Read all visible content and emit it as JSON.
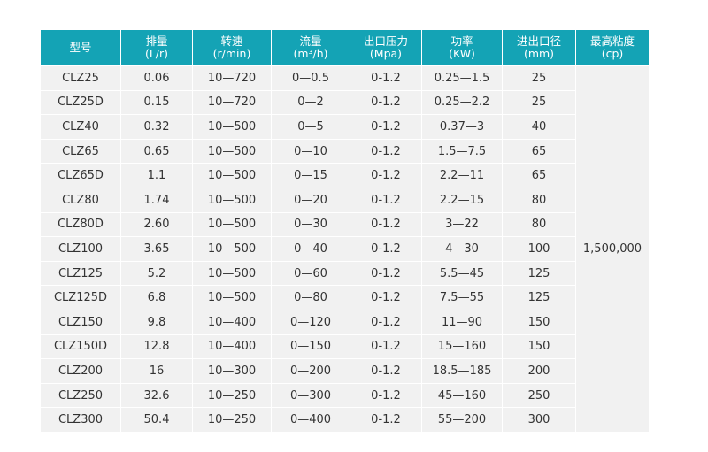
{
  "headers": [
    {
      "label": "型号",
      "unit": ""
    },
    {
      "label": "排量",
      "unit": "(L/r)"
    },
    {
      "label": "转速",
      "unit": "(r/min)"
    },
    {
      "label": "流量",
      "unit": "(m³/h)"
    },
    {
      "label": "出口压力",
      "unit": "(Mpa)"
    },
    {
      "label": "功率",
      "unit": "(KW)"
    },
    {
      "label": "进出口径",
      "unit": "(mm)"
    },
    {
      "label": "最高粘度",
      "unit": "(cp)"
    }
  ],
  "merged_viscosity": "1,500,000",
  "rows": [
    [
      "CLZ25",
      "0.06",
      "10—720",
      "0—0.5",
      "0-1.2",
      "0.25—1.5",
      "25"
    ],
    [
      "CLZ25D",
      "0.15",
      "10—720",
      "0—2",
      "0-1.2",
      "0.25—2.2",
      "25"
    ],
    [
      "CLZ40",
      "0.32",
      "10—500",
      "0—5",
      "0-1.2",
      "0.37—3",
      "40"
    ],
    [
      "CLZ65",
      "0.65",
      "10—500",
      "0—10",
      "0-1.2",
      "1.5—7.5",
      "65"
    ],
    [
      "CLZ65D",
      "1.1",
      "10—500",
      "0—15",
      "0-1.2",
      "2.2—11",
      "65"
    ],
    [
      "CLZ80",
      "1.74",
      "10—500",
      "0—20",
      "0-1.2",
      "2.2—15",
      "80"
    ],
    [
      "CLZ80D",
      "2.60",
      "10—500",
      "0—30",
      "0-1.2",
      "3—22",
      "80"
    ],
    [
      "CLZ100",
      "3.65",
      "10—500",
      "0—40",
      "0-1.2",
      "4—30",
      "100"
    ],
    [
      "CLZ125",
      "5.2",
      "10—500",
      "0—60",
      "0-1.2",
      "5.5—45",
      "125"
    ],
    [
      "CLZ125D",
      "6.8",
      "10—500",
      "0—80",
      "0-1.2",
      "7.5—55",
      "125"
    ],
    [
      "CLZ150",
      "9.8",
      "10—400",
      "0—120",
      "0-1.2",
      "11—90",
      "150"
    ],
    [
      "CLZ150D",
      "12.8",
      "10—400",
      "0—150",
      "0-1.2",
      "15—160",
      "150"
    ],
    [
      "CLZ200",
      "16",
      "10—300",
      "0—200",
      "0-1.2",
      "18.5—185",
      "200"
    ],
    [
      "CLZ250",
      "32.6",
      "10—250",
      "0—300",
      "0-1.2",
      "45—160",
      "250"
    ],
    [
      "CLZ300",
      "50.4",
      "10—250",
      "0—400",
      "0-1.2",
      "55—200",
      "300"
    ]
  ]
}
